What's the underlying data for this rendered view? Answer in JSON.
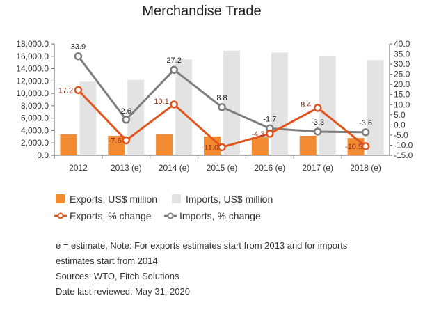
{
  "chart_data": {
    "type": "bar",
    "title": "Merchandise Trade",
    "categories": [
      "2012",
      "2013 (e)",
      "2014 (e)",
      "2015 (e)",
      "2016 (e)",
      "2017 (e)",
      "2018 (e)"
    ],
    "y_left": {
      "min": 0,
      "max": 18000,
      "step": 2000,
      "tick_labels": [
        "0.0",
        "2,000.0",
        "4,000.0",
        "6,000.0",
        "8,000.0",
        "10,000.0",
        "12,000.0",
        "14,000.0",
        "16,000.0",
        "18,000.0"
      ]
    },
    "y_right": {
      "min": -15,
      "max": 40,
      "step": 5,
      "tick_labels": [
        "-15.0",
        "-10.0",
        "-5.0",
        "0.0",
        "5.0",
        "10.0",
        "15.0",
        "20.0",
        "25.0",
        "30.0",
        "35.0",
        "40.0"
      ]
    },
    "series": [
      {
        "name": "Exports, US$ million",
        "kind": "bar",
        "axis": "left",
        "color": "#f28a32",
        "values": [
          3400,
          3150,
          3450,
          3050,
          2900,
          3150,
          2800
        ]
      },
      {
        "name": "Imports, US$ million",
        "kind": "bar",
        "axis": "left",
        "color": "#e3e3e3",
        "values": [
          11900,
          12200,
          15500,
          16900,
          16600,
          16100,
          15400
        ]
      },
      {
        "name": "Exports, % change",
        "kind": "line",
        "axis": "right",
        "color": "#e0541e",
        "values": [
          17.2,
          -7.6,
          10.1,
          -11.0,
          -4.3,
          8.4,
          -10.5
        ],
        "labels": [
          "17.2",
          "-7.6",
          "10.1",
          "-11.0",
          "-4.3",
          "8.4",
          "-10.5"
        ],
        "label_color": "#8b2f1a"
      },
      {
        "name": "Imports, % change",
        "kind": "line",
        "axis": "right",
        "color": "#7d7d7d",
        "values": [
          33.9,
          2.6,
          27.2,
          8.8,
          -1.7,
          -3.3,
          -3.6
        ],
        "labels": [
          "33.9",
          "2.6",
          "27.2",
          "8.8",
          "-1.7",
          "-3.3",
          "-3.6"
        ],
        "label_color": "#222222"
      }
    ],
    "legend": {
      "placement": "bottom"
    },
    "grid": false
  },
  "notes": {
    "estimate_line": "e = estimate, Note: For exports estimates start from 2013 and for imports",
    "estimate_line_2": "estimates start from 2014",
    "sources": "Sources: WTO, Fitch Solutions",
    "reviewed": "Date last reviewed: May 31, 2020"
  }
}
